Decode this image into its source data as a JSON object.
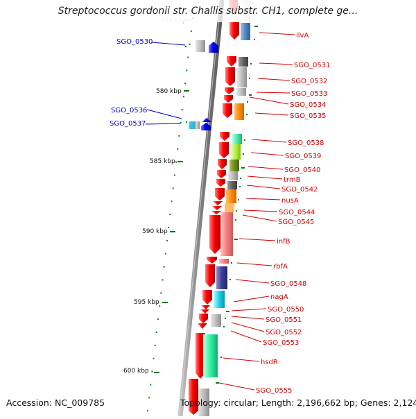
{
  "title": "Streptococcus gordonii str. Challis substr. CH1, complete ge...",
  "footer": {
    "accession": "Accession: NC_009785",
    "topology": "Topology: circular; Length: 2,196,662 bp; Genes: 2,124"
  },
  "colors": {
    "forward_label": "#d40000",
    "reverse_label": "#0000cc",
    "arrow_red": "#ff0000",
    "arrow_blue": "#0000ee",
    "tick_green": "#007700",
    "backbone_gray": "#8a8a8a"
  },
  "ruler": [
    {
      "label": "575 kbp",
      "faded": true
    },
    {
      "label": "580 kbp"
    },
    {
      "label": "585 kbp"
    },
    {
      "label": "590 kbp"
    },
    {
      "label": "595 kbp"
    },
    {
      "label": "600 kbp"
    }
  ],
  "labels_right": [
    "ilvA",
    "SGO_0531",
    "SGO_0532",
    "SGO_0533",
    "SGO_0534",
    "SGO_0535",
    "SGO_0538",
    "SGO_0539",
    "SGO_0540",
    "trmB",
    "SGO_0542",
    "nusA",
    "SGO_0544",
    "SGO_0545",
    "infB",
    "rbfA",
    "SGO_0548",
    "nagA",
    "SGO_0550",
    "SGO_0551",
    "SGO_0552",
    "SGO_0553",
    "hsdR",
    "SGO_0555"
  ],
  "labels_left": [
    "SGO_0530",
    "SGO_0536",
    "SGO_0537"
  ]
}
